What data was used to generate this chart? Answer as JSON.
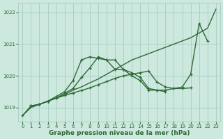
{
  "bg_color": "#cde8df",
  "grid_color": "#9ec8b8",
  "line_color": "#2d6a35",
  "marker": "+",
  "markersize": 3.5,
  "linewidth": 1.0,
  "xlabel": "Graphe pression niveau de la mer (hPa)",
  "xlabel_fontsize": 6.5,
  "tick_fontsize": 5.0,
  "xlim": [
    -0.5,
    23.5
  ],
  "ylim": [
    1018.55,
    1022.3
  ],
  "yticks": [
    1019,
    1020,
    1021,
    1022
  ],
  "xticks": [
    0,
    1,
    2,
    3,
    4,
    5,
    6,
    7,
    8,
    9,
    10,
    11,
    12,
    13,
    14,
    15,
    16,
    17,
    18,
    19,
    20,
    21,
    22,
    23
  ],
  "series": [
    {
      "x": [
        0,
        1,
        2,
        3,
        4,
        5,
        6,
        7,
        8,
        9,
        10,
        11,
        12,
        13,
        14,
        15,
        16,
        17,
        18,
        19,
        20,
        21,
        22,
        23
      ],
      "y": [
        1018.75,
        1019.0,
        1019.1,
        1019.2,
        1019.3,
        1019.4,
        1019.55,
        1019.65,
        1019.78,
        1019.9,
        1020.05,
        1020.2,
        1020.35,
        1020.5,
        1020.6,
        1020.7,
        1020.8,
        1020.9,
        1021.0,
        1021.1,
        1021.2,
        1021.35,
        1021.5,
        1022.1
      ],
      "has_marker": false
    },
    {
      "x": [
        1,
        2,
        3,
        4,
        5,
        6,
        7,
        8,
        9,
        10,
        11,
        12,
        13,
        14,
        15,
        16,
        17,
        18,
        19,
        20,
        21,
        22
      ],
      "y": [
        1019.05,
        1019.1,
        1019.2,
        1019.35,
        1019.5,
        1019.85,
        1020.5,
        1020.6,
        1020.55,
        1020.5,
        1020.2,
        1020.2,
        1020.0,
        1019.85,
        1019.55,
        1019.55,
        1019.55,
        1019.6,
        1019.65,
        1020.05,
        1021.65,
        1021.1
      ],
      "has_marker": true
    },
    {
      "x": [
        1,
        2,
        3,
        4,
        5,
        6,
        7,
        8,
        9,
        10,
        11,
        12,
        13,
        14,
        15,
        16,
        17
      ],
      "y": [
        1019.05,
        1019.1,
        1019.2,
        1019.3,
        1019.45,
        1019.6,
        1019.95,
        1020.25,
        1020.6,
        1020.5,
        1020.5,
        1020.2,
        1020.1,
        1019.95,
        1019.6,
        1019.55,
        1019.5
      ],
      "has_marker": true
    },
    {
      "x": [
        0,
        1,
        2,
        3,
        4,
        5,
        6,
        7,
        8,
        9,
        10,
        11,
        12,
        13,
        14,
        15,
        16,
        17,
        18,
        19,
        20
      ],
      "y": [
        1018.75,
        1019.05,
        1019.1,
        1019.2,
        1019.3,
        1019.38,
        1019.46,
        1019.54,
        1019.62,
        1019.72,
        1019.82,
        1019.92,
        1020.0,
        1020.05,
        1020.1,
        1020.15,
        1019.8,
        1019.65,
        1019.6,
        1019.6,
        1019.62
      ],
      "has_marker": true
    }
  ]
}
